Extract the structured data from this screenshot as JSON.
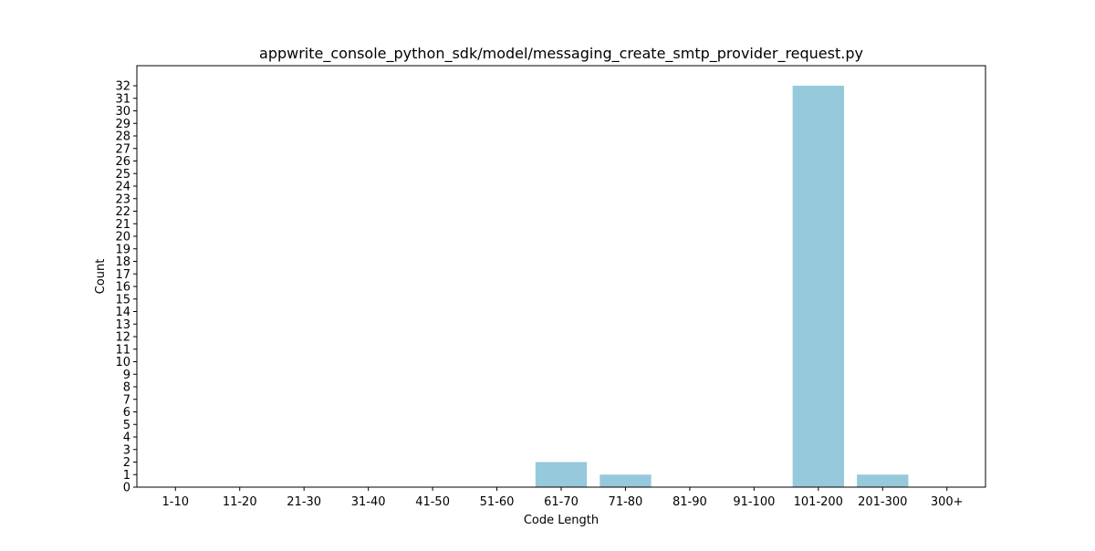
{
  "chart_data": {
    "type": "bar",
    "title": "appwrite_console_python_sdk/model/messaging_create_smtp_provider_request.py",
    "xlabel": "Code Length",
    "ylabel": "Count",
    "categories": [
      "1-10",
      "11-20",
      "21-30",
      "31-40",
      "41-50",
      "51-60",
      "61-70",
      "71-80",
      "81-90",
      "91-100",
      "101-200",
      "201-300",
      "300+"
    ],
    "values": [
      0,
      0,
      0,
      0,
      0,
      0,
      2,
      1,
      0,
      0,
      32,
      1,
      0
    ],
    "ylim": [
      0,
      33.6
    ],
    "yticks": [
      0,
      1,
      2,
      3,
      4,
      5,
      6,
      7,
      8,
      9,
      10,
      11,
      12,
      13,
      14,
      15,
      16,
      17,
      18,
      19,
      20,
      21,
      22,
      23,
      24,
      25,
      26,
      27,
      28,
      29,
      30,
      31,
      32
    ],
    "bar_color": "#96c9dc",
    "grid": false,
    "legend": false
  }
}
